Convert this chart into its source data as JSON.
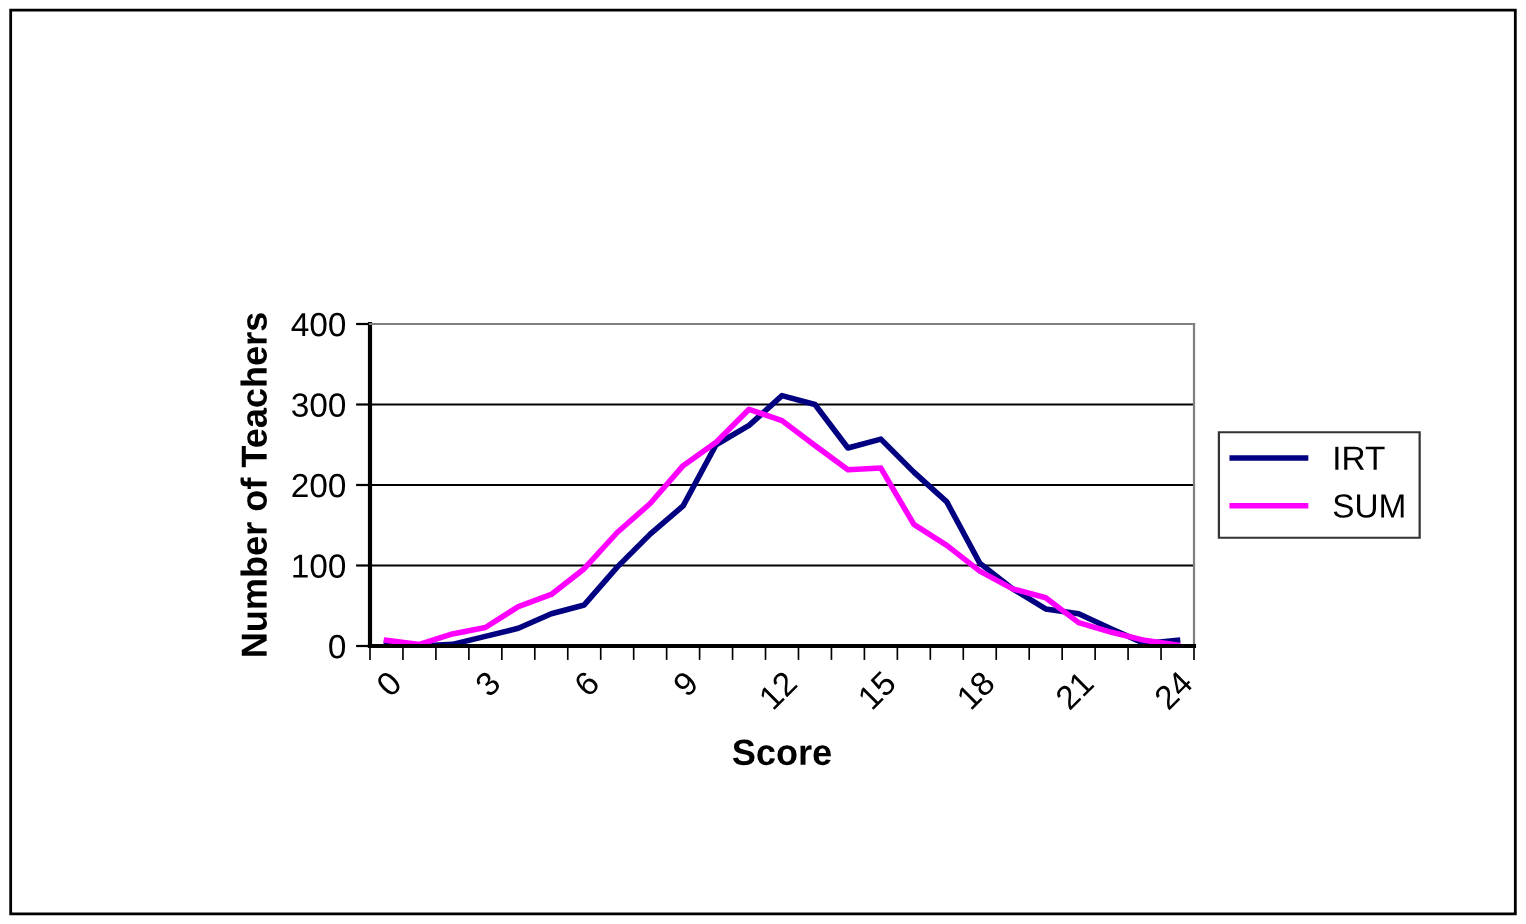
{
  "chart_data": {
    "type": "line",
    "xlabel": "Score",
    "ylabel": "Number of Teachers",
    "categories": [
      "0",
      null,
      null,
      "3",
      null,
      null,
      "6",
      null,
      null,
      "9",
      null,
      null,
      "12",
      null,
      null,
      "15",
      null,
      null,
      "18",
      null,
      null,
      "21",
      null,
      null,
      "24"
    ],
    "series": [
      {
        "name": "IRT",
        "color": "#000080",
        "values": [
          5,
          0,
          2,
          12,
          22,
          40,
          51,
          98,
          139,
          174,
          250,
          274,
          311,
          300,
          246,
          257,
          216,
          179,
          103,
          71,
          46,
          40,
          21,
          3,
          7
        ]
      },
      {
        "name": "SUM",
        "color": "#ff00ff",
        "values": [
          7,
          2,
          15,
          23,
          49,
          64,
          96,
          141,
          177,
          224,
          253,
          294,
          280,
          249,
          219,
          221,
          151,
          125,
          93,
          71,
          60,
          29,
          17,
          7,
          1
        ]
      }
    ],
    "ylim": [
      0,
      400
    ],
    "yticks": [
      0,
      100,
      200,
      300,
      400
    ],
    "grid": "y",
    "legend": "right",
    "marker": "none",
    "line_style": "solid"
  }
}
